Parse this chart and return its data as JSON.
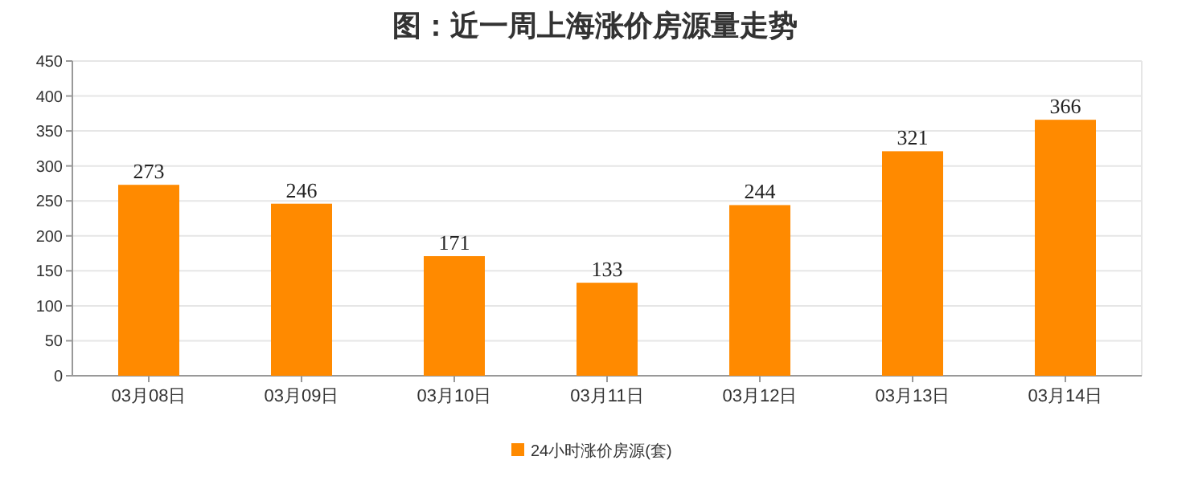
{
  "chart_data": {
    "type": "bar",
    "title": "图：近一周上海涨价房源量走势",
    "categories": [
      "03月08日",
      "03月09日",
      "03月10日",
      "03月11日",
      "03月12日",
      "03月13日",
      "03月14日"
    ],
    "series": [
      {
        "name": "24小时涨价房源(套)",
        "color": "#ff8a00",
        "values": [
          273,
          246,
          171,
          133,
          244,
          321,
          366
        ]
      }
    ],
    "ylim": [
      0,
      450
    ],
    "yticks": [
      0,
      50,
      100,
      150,
      200,
      250,
      300,
      350,
      400,
      450
    ],
    "grid": "y",
    "data_labels": true,
    "legend": "bottom"
  }
}
